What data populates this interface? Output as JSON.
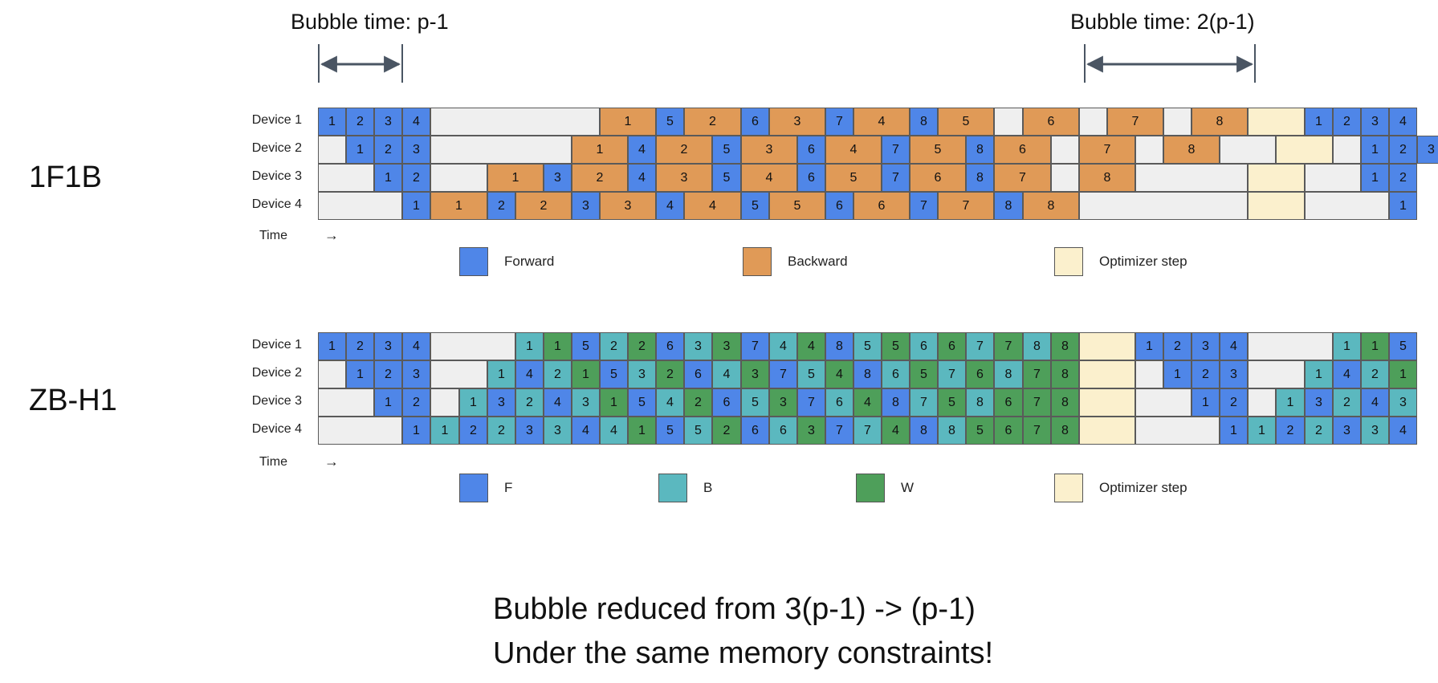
{
  "colors": {
    "forward": "#4f86e8",
    "backward": "#e09a57",
    "b": "#5bb8bf",
    "w": "#4e9f5a",
    "idle": "#efefef",
    "optimizer": "#fbf0cd"
  },
  "top": {
    "bubble_left_label": "Bubble time: p-1",
    "bubble_right_label": "Bubble time: 2(p-1)",
    "title": "1F1B",
    "devices": [
      "Device 1",
      "Device 2",
      "Device 3",
      "Device 4"
    ],
    "time_label": "Time",
    "time_arrow": "→",
    "legend": [
      {
        "label": "Forward",
        "type": "F"
      },
      {
        "label": "Backward",
        "type": "B"
      },
      {
        "label": "Optimizer step",
        "type": "O"
      }
    ],
    "rows": [
      [
        [
          "F",
          "1",
          1
        ],
        [
          "F",
          "2",
          1
        ],
        [
          "F",
          "3",
          1
        ],
        [
          "F",
          "4",
          1
        ],
        [
          "E",
          "",
          6
        ],
        [
          "B",
          "1",
          2
        ],
        [
          "F",
          "5",
          1
        ],
        [
          "B",
          "2",
          2
        ],
        [
          "F",
          "6",
          1
        ],
        [
          "B",
          "3",
          2
        ],
        [
          "F",
          "7",
          1
        ],
        [
          "B",
          "4",
          2
        ],
        [
          "F",
          "8",
          1
        ],
        [
          "B",
          "5",
          2
        ],
        [
          "E",
          "",
          1
        ],
        [
          "B",
          "6",
          2
        ],
        [
          "E",
          "",
          1
        ],
        [
          "B",
          "7",
          2
        ],
        [
          "E",
          "",
          1
        ],
        [
          "B",
          "8",
          2
        ],
        [
          "O",
          "",
          2
        ],
        [
          "F",
          "1",
          1
        ],
        [
          "F",
          "2",
          1
        ],
        [
          "F",
          "3",
          1
        ],
        [
          "F",
          "4",
          1
        ]
      ],
      [
        [
          "E",
          "",
          1
        ],
        [
          "F",
          "1",
          1
        ],
        [
          "F",
          "2",
          1
        ],
        [
          "F",
          "3",
          1
        ],
        [
          "E",
          "",
          5
        ],
        [
          "B",
          "1",
          2
        ],
        [
          "F",
          "4",
          1
        ],
        [
          "B",
          "2",
          2
        ],
        [
          "F",
          "5",
          1
        ],
        [
          "B",
          "3",
          2
        ],
        [
          "F",
          "6",
          1
        ],
        [
          "B",
          "4",
          2
        ],
        [
          "F",
          "7",
          1
        ],
        [
          "B",
          "5",
          2
        ],
        [
          "F",
          "8",
          1
        ],
        [
          "B",
          "6",
          2
        ],
        [
          "E",
          "",
          1
        ],
        [
          "B",
          "7",
          2
        ],
        [
          "E",
          "",
          1
        ],
        [
          "B",
          "8",
          2
        ],
        [
          "E",
          "",
          2
        ],
        [
          "O",
          "",
          2
        ],
        [
          "E",
          "",
          1
        ],
        [
          "F",
          "1",
          1
        ],
        [
          "F",
          "2",
          1
        ],
        [
          "F",
          "3",
          1
        ]
      ],
      [
        [
          "E",
          "",
          2
        ],
        [
          "F",
          "1",
          1
        ],
        [
          "F",
          "2",
          1
        ],
        [
          "E",
          "",
          2
        ],
        [
          "B",
          "1",
          2
        ],
        [
          "F",
          "3",
          1
        ],
        [
          "B",
          "2",
          2
        ],
        [
          "F",
          "4",
          1
        ],
        [
          "B",
          "3",
          2
        ],
        [
          "F",
          "5",
          1
        ],
        [
          "B",
          "4",
          2
        ],
        [
          "F",
          "6",
          1
        ],
        [
          "B",
          "5",
          2
        ],
        [
          "F",
          "7",
          1
        ],
        [
          "B",
          "6",
          2
        ],
        [
          "F",
          "8",
          1
        ],
        [
          "B",
          "7",
          2
        ],
        [
          "E",
          "",
          1
        ],
        [
          "B",
          "8",
          2
        ],
        [
          "E",
          "",
          4
        ],
        [
          "O",
          "",
          2
        ],
        [
          "E",
          "",
          2
        ],
        [
          "F",
          "1",
          1
        ],
        [
          "F",
          "2",
          1
        ]
      ],
      [
        [
          "E",
          "",
          3
        ],
        [
          "F",
          "1",
          1
        ],
        [
          "B",
          "1",
          2
        ],
        [
          "F",
          "2",
          1
        ],
        [
          "B",
          "2",
          2
        ],
        [
          "F",
          "3",
          1
        ],
        [
          "B",
          "3",
          2
        ],
        [
          "F",
          "4",
          1
        ],
        [
          "B",
          "4",
          2
        ],
        [
          "F",
          "5",
          1
        ],
        [
          "B",
          "5",
          2
        ],
        [
          "F",
          "6",
          1
        ],
        [
          "B",
          "6",
          2
        ],
        [
          "F",
          "7",
          1
        ],
        [
          "B",
          "7",
          2
        ],
        [
          "F",
          "8",
          1
        ],
        [
          "B",
          "8",
          2
        ],
        [
          "E",
          "",
          6
        ],
        [
          "O",
          "",
          2
        ],
        [
          "E",
          "",
          3
        ],
        [
          "F",
          "1",
          1
        ]
      ]
    ]
  },
  "bottom": {
    "title": "ZB-H1",
    "devices": [
      "Device 1",
      "Device 2",
      "Device 3",
      "Device 4"
    ],
    "time_label": "Time",
    "time_arrow": "→",
    "legend": [
      {
        "label": "F",
        "type": "F"
      },
      {
        "label": "B",
        "type": "Bz"
      },
      {
        "label": "W",
        "type": "W"
      },
      {
        "label": "Optimizer step",
        "type": "O"
      }
    ],
    "rows": [
      [
        [
          "F",
          "1",
          1
        ],
        [
          "F",
          "2",
          1
        ],
        [
          "F",
          "3",
          1
        ],
        [
          "F",
          "4",
          1
        ],
        [
          "E",
          "",
          3
        ],
        [
          "Bz",
          "1",
          1
        ],
        [
          "W",
          "1",
          1
        ],
        [
          "F",
          "5",
          1
        ],
        [
          "Bz",
          "2",
          1
        ],
        [
          "W",
          "2",
          1
        ],
        [
          "F",
          "6",
          1
        ],
        [
          "Bz",
          "3",
          1
        ],
        [
          "W",
          "3",
          1
        ],
        [
          "F",
          "7",
          1
        ],
        [
          "Bz",
          "4",
          1
        ],
        [
          "W",
          "4",
          1
        ],
        [
          "F",
          "8",
          1
        ],
        [
          "Bz",
          "5",
          1
        ],
        [
          "W",
          "5",
          1
        ],
        [
          "Bz",
          "6",
          1
        ],
        [
          "W",
          "6",
          1
        ],
        [
          "Bz",
          "7",
          1
        ],
        [
          "W",
          "7",
          1
        ],
        [
          "Bz",
          "8",
          1
        ],
        [
          "W",
          "8",
          1
        ],
        [
          "O",
          "",
          2
        ],
        [
          "F",
          "1",
          1
        ],
        [
          "F",
          "2",
          1
        ],
        [
          "F",
          "3",
          1
        ],
        [
          "F",
          "4",
          1
        ],
        [
          "E",
          "",
          3
        ],
        [
          "Bz",
          "1",
          1
        ],
        [
          "W",
          "1",
          1
        ],
        [
          "F",
          "5",
          1
        ]
      ],
      [
        [
          "E",
          "",
          1
        ],
        [
          "F",
          "1",
          1
        ],
        [
          "F",
          "2",
          1
        ],
        [
          "F",
          "3",
          1
        ],
        [
          "E",
          "",
          2
        ],
        [
          "Bz",
          "1",
          1
        ],
        [
          "F",
          "4",
          1
        ],
        [
          "Bz",
          "2",
          1
        ],
        [
          "W",
          "1",
          1
        ],
        [
          "F",
          "5",
          1
        ],
        [
          "Bz",
          "3",
          1
        ],
        [
          "W",
          "2",
          1
        ],
        [
          "F",
          "6",
          1
        ],
        [
          "Bz",
          "4",
          1
        ],
        [
          "W",
          "3",
          1
        ],
        [
          "F",
          "7",
          1
        ],
        [
          "Bz",
          "5",
          1
        ],
        [
          "W",
          "4",
          1
        ],
        [
          "F",
          "8",
          1
        ],
        [
          "Bz",
          "6",
          1
        ],
        [
          "W",
          "5",
          1
        ],
        [
          "Bz",
          "7",
          1
        ],
        [
          "W",
          "6",
          1
        ],
        [
          "Bz",
          "8",
          1
        ],
        [
          "W",
          "7",
          1
        ],
        [
          "W",
          "8",
          1
        ],
        [
          "O",
          "",
          2
        ],
        [
          "E",
          "",
          1
        ],
        [
          "F",
          "1",
          1
        ],
        [
          "F",
          "2",
          1
        ],
        [
          "F",
          "3",
          1
        ],
        [
          "E",
          "",
          2
        ],
        [
          "Bz",
          "1",
          1
        ],
        [
          "F",
          "4",
          1
        ],
        [
          "Bz",
          "2",
          1
        ],
        [
          "W",
          "1",
          1
        ]
      ],
      [
        [
          "E",
          "",
          2
        ],
        [
          "F",
          "1",
          1
        ],
        [
          "F",
          "2",
          1
        ],
        [
          "E",
          "",
          1
        ],
        [
          "Bz",
          "1",
          1
        ],
        [
          "F",
          "3",
          1
        ],
        [
          "Bz",
          "2",
          1
        ],
        [
          "F",
          "4",
          1
        ],
        [
          "Bz",
          "3",
          1
        ],
        [
          "W",
          "1",
          1
        ],
        [
          "F",
          "5",
          1
        ],
        [
          "Bz",
          "4",
          1
        ],
        [
          "W",
          "2",
          1
        ],
        [
          "F",
          "6",
          1
        ],
        [
          "Bz",
          "5",
          1
        ],
        [
          "W",
          "3",
          1
        ],
        [
          "F",
          "7",
          1
        ],
        [
          "Bz",
          "6",
          1
        ],
        [
          "W",
          "4",
          1
        ],
        [
          "F",
          "8",
          1
        ],
        [
          "Bz",
          "7",
          1
        ],
        [
          "W",
          "5",
          1
        ],
        [
          "Bz",
          "8",
          1
        ],
        [
          "W",
          "6",
          1
        ],
        [
          "W",
          "7",
          1
        ],
        [
          "W",
          "8",
          1
        ],
        [
          "O",
          "",
          2
        ],
        [
          "E",
          "",
          2
        ],
        [
          "F",
          "1",
          1
        ],
        [
          "F",
          "2",
          1
        ],
        [
          "E",
          "",
          1
        ],
        [
          "Bz",
          "1",
          1
        ],
        [
          "F",
          "3",
          1
        ],
        [
          "Bz",
          "2",
          1
        ],
        [
          "F",
          "4",
          1
        ],
        [
          "Bz",
          "3",
          1
        ]
      ],
      [
        [
          "E",
          "",
          3
        ],
        [
          "F",
          "1",
          1
        ],
        [
          "Bz",
          "1",
          1
        ],
        [
          "F",
          "2",
          1
        ],
        [
          "Bz",
          "2",
          1
        ],
        [
          "F",
          "3",
          1
        ],
        [
          "Bz",
          "3",
          1
        ],
        [
          "F",
          "4",
          1
        ],
        [
          "Bz",
          "4",
          1
        ],
        [
          "W",
          "1",
          1
        ],
        [
          "F",
          "5",
          1
        ],
        [
          "Bz",
          "5",
          1
        ],
        [
          "W",
          "2",
          1
        ],
        [
          "F",
          "6",
          1
        ],
        [
          "Bz",
          "6",
          1
        ],
        [
          "W",
          "3",
          1
        ],
        [
          "F",
          "7",
          1
        ],
        [
          "Bz",
          "7",
          1
        ],
        [
          "W",
          "4",
          1
        ],
        [
          "F",
          "8",
          1
        ],
        [
          "Bz",
          "8",
          1
        ],
        [
          "W",
          "5",
          1
        ],
        [
          "W",
          "6",
          1
        ],
        [
          "W",
          "7",
          1
        ],
        [
          "W",
          "8",
          1
        ],
        [
          "O",
          "",
          2
        ],
        [
          "E",
          "",
          3
        ],
        [
          "F",
          "1",
          1
        ],
        [
          "Bz",
          "1",
          1
        ],
        [
          "F",
          "2",
          1
        ],
        [
          "Bz",
          "2",
          1
        ],
        [
          "F",
          "3",
          1
        ],
        [
          "Bz",
          "3",
          1
        ],
        [
          "F",
          "4",
          1
        ]
      ]
    ]
  },
  "caption": {
    "line1": "Bubble reduced from 3(p-1) -> (p-1)",
    "line2": "Under the same memory constraints!"
  }
}
